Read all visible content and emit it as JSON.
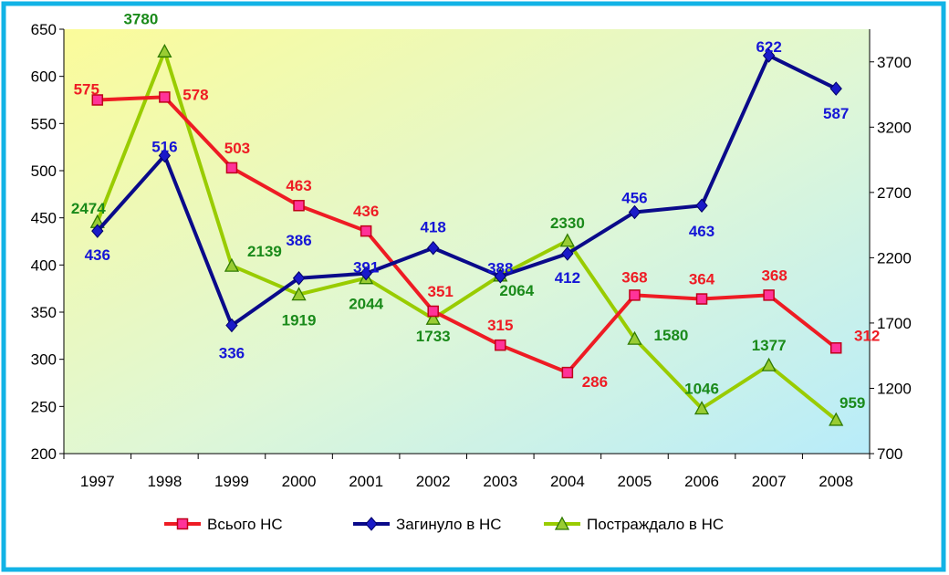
{
  "chart_data": {
    "type": "line",
    "categories": [
      "1997",
      "1998",
      "1999",
      "2000",
      "2001",
      "2002",
      "2003",
      "2004",
      "2005",
      "2006",
      "2007",
      "2008"
    ],
    "y_left": {
      "min": 200,
      "max": 650,
      "step": 50,
      "ticks": [
        "200",
        "250",
        "300",
        "350",
        "400",
        "450",
        "500",
        "550",
        "600",
        "650"
      ]
    },
    "y_right": {
      "min": 700,
      "max": 3950,
      "ticks": [
        "700",
        "1200",
        "1700",
        "2200",
        "2700",
        "3200",
        "3700"
      ]
    },
    "series": [
      {
        "name": "Всього НС",
        "axis": "left",
        "color": "#ee1c24",
        "marker": "square",
        "values": [
          575,
          578,
          503,
          463,
          436,
          351,
          315,
          286,
          368,
          364,
          368,
          312
        ],
        "labels": [
          "575",
          "578",
          "503",
          "463",
          "436",
          "351",
          "315",
          "286",
          "368",
          "364",
          "368",
          "312"
        ]
      },
      {
        "name": "Загинуло в НС",
        "axis": "left",
        "color": "#0a0a8a",
        "label_color": "#1515d6",
        "marker": "diamond",
        "values": [
          436,
          516,
          336,
          386,
          391,
          418,
          388,
          412,
          456,
          463,
          622,
          587
        ],
        "labels": [
          "436",
          "516",
          "336",
          "386",
          "391",
          "418",
          "388",
          "412",
          "456",
          "463",
          "622",
          "587"
        ]
      },
      {
        "name": "Постраждало в НС",
        "axis": "right",
        "color": "#99cc00",
        "label_color": "#1a8a1a",
        "marker": "triangle",
        "values": [
          2474,
          3780,
          2139,
          1919,
          2044,
          1733,
          2064,
          2330,
          1580,
          1046,
          1377,
          959
        ],
        "labels": [
          "2474",
          "3780",
          "2139",
          "1919",
          "2044",
          "1733",
          "2064",
          "2330",
          "1580",
          "1046",
          "1377",
          "959"
        ]
      }
    ],
    "grid": false,
    "legend": "bottom",
    "colors": {
      "frame": "#12b3e6",
      "plot_top_left": "#fbfb9a",
      "plot_bottom_right": "#b8ecfa"
    }
  }
}
